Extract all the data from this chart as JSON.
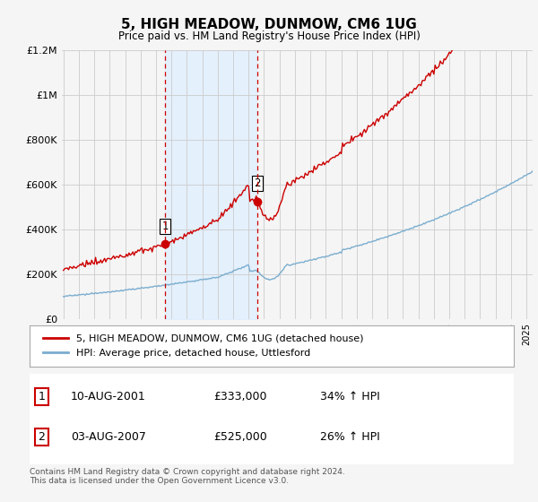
{
  "title": "5, HIGH MEADOW, DUNMOW, CM6 1UG",
  "subtitle": "Price paid vs. HM Land Registry's House Price Index (HPI)",
  "ylim": [
    0,
    1200000
  ],
  "yticks": [
    0,
    200000,
    400000,
    600000,
    800000,
    1000000,
    1200000
  ],
  "ytick_labels": [
    "£0",
    "£200K",
    "£400K",
    "£600K",
    "£800K",
    "£1M",
    "£1.2M"
  ],
  "red_line_color": "#cc0000",
  "blue_line_color": "#7aadcf",
  "shaded_color": "#ddeeff",
  "background_color": "#f5f5f5",
  "grid_color": "#cccccc",
  "t1": 2001.583,
  "t2": 2007.583,
  "price1": 333000,
  "price2": 525000,
  "legend_red": "5, HIGH MEADOW, DUNMOW, CM6 1UG (detached house)",
  "legend_blue": "HPI: Average price, detached house, Uttlesford",
  "table_row1": [
    "1",
    "10-AUG-2001",
    "£333,000",
    "34% ↑ HPI"
  ],
  "table_row2": [
    "2",
    "03-AUG-2007",
    "£525,000",
    "26% ↑ HPI"
  ],
  "footnote": "Contains HM Land Registry data © Crown copyright and database right 2024.\nThis data is licensed under the Open Government Licence v3.0."
}
